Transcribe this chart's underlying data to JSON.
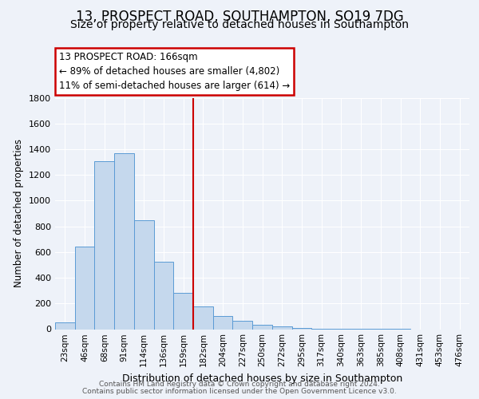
{
  "title": "13, PROSPECT ROAD, SOUTHAMPTON, SO19 7DG",
  "subtitle": "Size of property relative to detached houses in Southampton",
  "xlabel": "Distribution of detached houses by size in Southampton",
  "ylabel": "Number of detached properties",
  "bar_labels": [
    "23sqm",
    "46sqm",
    "68sqm",
    "91sqm",
    "114sqm",
    "136sqm",
    "159sqm",
    "182sqm",
    "204sqm",
    "227sqm",
    "250sqm",
    "272sqm",
    "295sqm",
    "317sqm",
    "340sqm",
    "363sqm",
    "385sqm",
    "408sqm",
    "431sqm",
    "453sqm",
    "476sqm"
  ],
  "bar_values": [
    55,
    645,
    1305,
    1370,
    850,
    525,
    280,
    175,
    105,
    68,
    32,
    20,
    10,
    6,
    3,
    2,
    1,
    1,
    0,
    0,
    0
  ],
  "bar_color": "#c5d8ed",
  "bar_edge_color": "#5b9bd5",
  "vline_color": "#cc0000",
  "annotation_title": "13 PROSPECT ROAD: 166sqm",
  "annotation_line1": "← 89% of detached houses are smaller (4,802)",
  "annotation_line2": "11% of semi-detached houses are larger (614) →",
  "annotation_box_color": "#cc0000",
  "ylim": [
    0,
    1800
  ],
  "yticks": [
    0,
    200,
    400,
    600,
    800,
    1000,
    1200,
    1400,
    1600,
    1800
  ],
  "footer1": "Contains HM Land Registry data © Crown copyright and database right 2024.",
  "footer2": "Contains public sector information licensed under the Open Government Licence v3.0.",
  "background_color": "#eef2f9",
  "grid_color": "#ffffff",
  "title_fontsize": 12,
  "subtitle_fontsize": 10
}
